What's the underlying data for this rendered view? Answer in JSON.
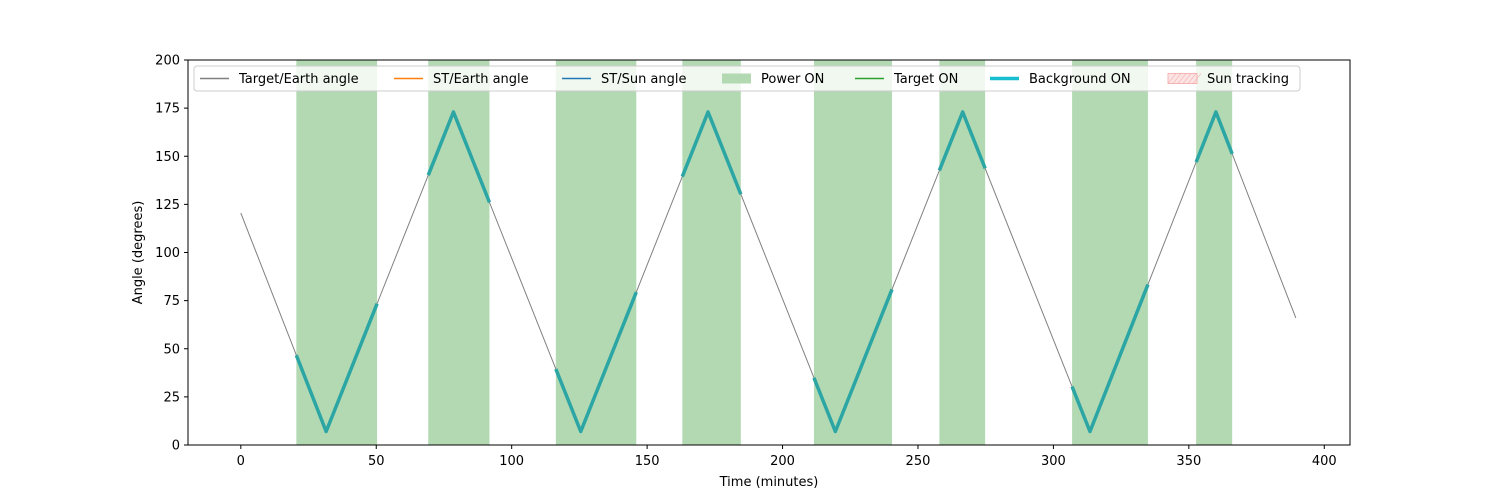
{
  "chart_data": {
    "type": "line",
    "xlabel": "Time (minutes)",
    "ylabel": "Angle (degrees)",
    "xlim": [
      -19.5,
      409.5
    ],
    "ylim": [
      0,
      200
    ],
    "xticks": [
      0,
      50,
      100,
      150,
      200,
      250,
      300,
      350,
      400
    ],
    "yticks": [
      0,
      25,
      50,
      75,
      100,
      125,
      150,
      175,
      200
    ],
    "grid": false,
    "legend_position": "top",
    "legend": [
      {
        "label": "Target/Earth angle",
        "kind": "line",
        "color": "#808080"
      },
      {
        "label": "ST/Earth angle",
        "kind": "line",
        "color": "#ff7f0e"
      },
      {
        "label": "ST/Sun angle",
        "kind": "line",
        "color": "#1f77b4"
      },
      {
        "label": "Power ON",
        "kind": "patch",
        "color": "#b3d9b3"
      },
      {
        "label": "Target ON",
        "kind": "line",
        "color": "#2ca02c"
      },
      {
        "label": "Background ON",
        "kind": "thickline",
        "color": "#17becf"
      },
      {
        "label": "Sun tracking",
        "kind": "hatch",
        "color": "#f4a6a6"
      }
    ],
    "power_on_intervals": [
      [
        20.5,
        50.3
      ],
      [
        69.2,
        91.8
      ],
      [
        116.3,
        146
      ],
      [
        163,
        184.6
      ],
      [
        211.6,
        240.4
      ],
      [
        257.9,
        274.8
      ],
      [
        306.9,
        334.9
      ],
      [
        352.7,
        366
      ]
    ],
    "target_earth_angle": {
      "name": "Target/Earth angle",
      "color": "#808080",
      "points": [
        [
          0,
          120.5
        ],
        [
          31.5,
          7
        ],
        [
          78.5,
          173
        ],
        [
          125.5,
          7
        ],
        [
          172.5,
          173
        ],
        [
          219.5,
          7
        ],
        [
          266.5,
          173
        ],
        [
          313.5,
          7
        ],
        [
          360,
          173
        ],
        [
          389.5,
          66
        ]
      ]
    },
    "background_on_color": "#2ca6a4"
  }
}
